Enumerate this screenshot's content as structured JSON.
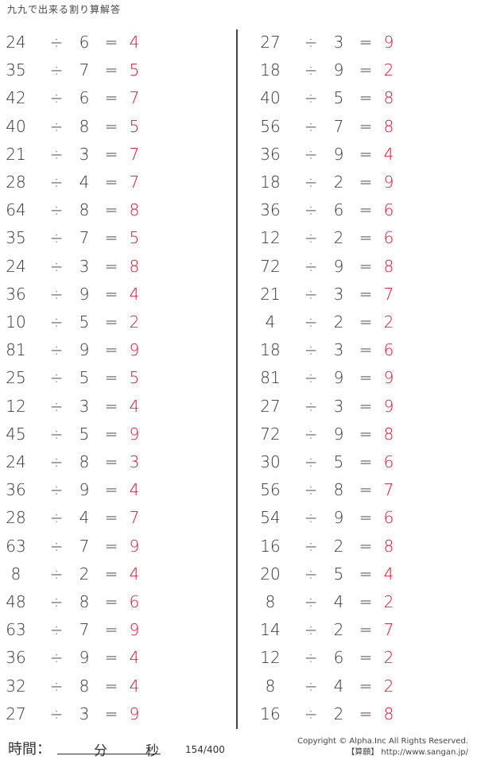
{
  "title": "九九で出来る割り算解答",
  "symbols": {
    "divide": "÷",
    "equals": "="
  },
  "left": [
    [
      "24",
      "6",
      "4"
    ],
    [
      "35",
      "7",
      "5"
    ],
    [
      "42",
      "6",
      "7"
    ],
    [
      "40",
      "8",
      "5"
    ],
    [
      "21",
      "3",
      "7"
    ],
    [
      "28",
      "4",
      "7"
    ],
    [
      "64",
      "8",
      "8"
    ],
    [
      "35",
      "7",
      "5"
    ],
    [
      "24",
      "3",
      "8"
    ],
    [
      "36",
      "9",
      "4"
    ],
    [
      "10",
      "5",
      "2"
    ],
    [
      "81",
      "9",
      "9"
    ],
    [
      "25",
      "5",
      "5"
    ],
    [
      "12",
      "3",
      "4"
    ],
    [
      "45",
      "5",
      "9"
    ],
    [
      "24",
      "8",
      "3"
    ],
    [
      "36",
      "9",
      "4"
    ],
    [
      "28",
      "4",
      "7"
    ],
    [
      "63",
      "7",
      "9"
    ],
    [
      "8",
      "2",
      "4"
    ],
    [
      "48",
      "8",
      "6"
    ],
    [
      "63",
      "7",
      "9"
    ],
    [
      "36",
      "9",
      "4"
    ],
    [
      "32",
      "8",
      "4"
    ],
    [
      "27",
      "3",
      "9"
    ]
  ],
  "right": [
    [
      "27",
      "3",
      "9"
    ],
    [
      "18",
      "9",
      "2"
    ],
    [
      "40",
      "5",
      "8"
    ],
    [
      "56",
      "7",
      "8"
    ],
    [
      "36",
      "9",
      "4"
    ],
    [
      "18",
      "2",
      "9"
    ],
    [
      "36",
      "6",
      "6"
    ],
    [
      "12",
      "2",
      "6"
    ],
    [
      "72",
      "9",
      "8"
    ],
    [
      "21",
      "3",
      "7"
    ],
    [
      "4",
      "2",
      "2"
    ],
    [
      "18",
      "3",
      "6"
    ],
    [
      "81",
      "9",
      "9"
    ],
    [
      "27",
      "3",
      "9"
    ],
    [
      "72",
      "9",
      "8"
    ],
    [
      "30",
      "5",
      "6"
    ],
    [
      "56",
      "8",
      "7"
    ],
    [
      "54",
      "9",
      "6"
    ],
    [
      "16",
      "2",
      "8"
    ],
    [
      "20",
      "5",
      "4"
    ],
    [
      "8",
      "4",
      "2"
    ],
    [
      "14",
      "2",
      "7"
    ],
    [
      "12",
      "6",
      "2"
    ],
    [
      "8",
      "4",
      "2"
    ],
    [
      "16",
      "2",
      "8"
    ]
  ],
  "footer": {
    "time_label": "時間：",
    "minutes_label": "分",
    "seconds_label": "秒",
    "page": "154/400",
    "copyright": "Copyright © Alpha.Inc All Rights Reserved.",
    "site": "【算願】 http://www.sangan.jp/"
  },
  "colors": {
    "answer": "#e0102a",
    "text": "#333333"
  }
}
